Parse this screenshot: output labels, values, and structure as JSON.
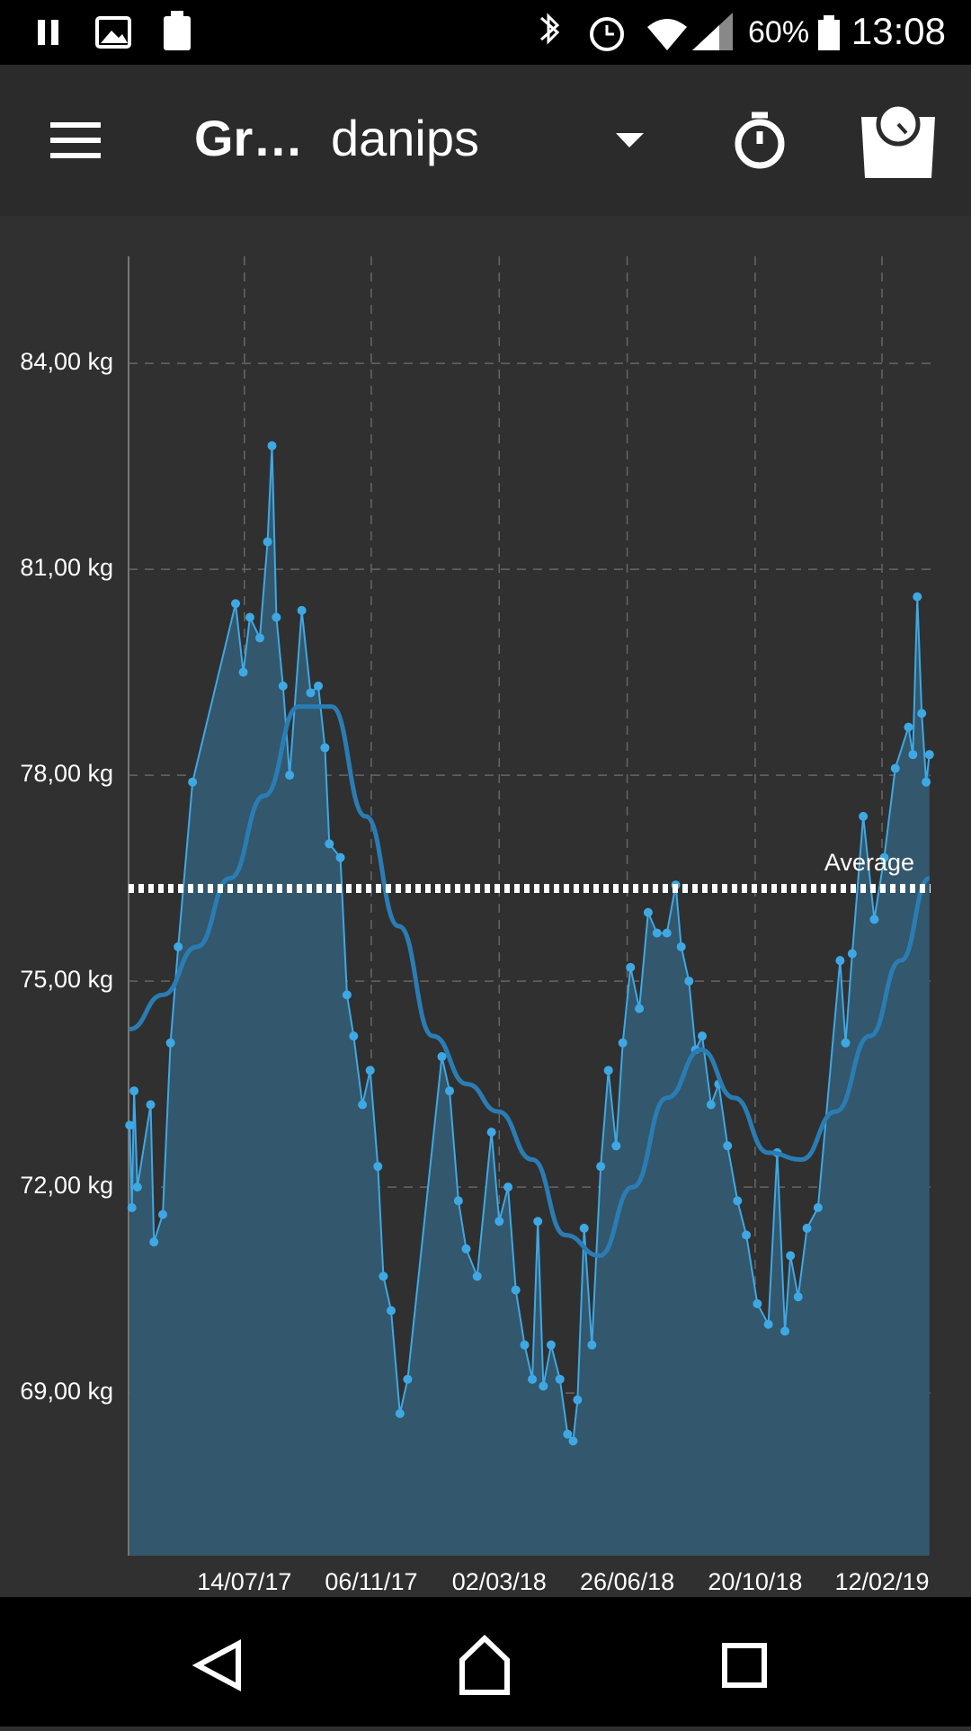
{
  "status_bar": {
    "battery": "60%",
    "time": "13:08"
  },
  "app_bar": {
    "title": "Gr…",
    "user": "danips"
  },
  "chart_data": {
    "type": "line",
    "x": [
      "2017-04-01",
      "2017-04-03",
      "2017-04-05",
      "2017-04-08",
      "2017-04-20",
      "2017-04-23",
      "2017-05-01",
      "2017-05-08",
      "2017-05-15",
      "2017-05-28",
      "2017-07-06",
      "2017-07-13",
      "2017-07-19",
      "2017-07-28",
      "2017-08-04",
      "2017-08-08",
      "2017-08-12",
      "2017-08-18",
      "2017-08-24",
      "2017-09-04",
      "2017-09-12",
      "2017-09-19",
      "2017-09-25",
      "2017-09-29",
      "2017-10-09",
      "2017-10-15",
      "2017-10-21",
      "2017-10-29",
      "2017-11-05",
      "2017-11-12",
      "2017-11-17",
      "2017-11-24",
      "2017-12-02",
      "2017-12-09",
      "2018-01-09",
      "2018-01-16",
      "2018-01-24",
      "2018-01-31",
      "2018-02-10",
      "2018-02-23",
      "2018-03-02",
      "2018-03-10",
      "2018-03-17",
      "2018-03-25",
      "2018-04-01",
      "2018-04-06",
      "2018-04-11",
      "2018-04-18",
      "2018-04-26",
      "2018-05-03",
      "2018-05-08",
      "2018-05-12",
      "2018-05-18",
      "2018-05-25",
      "2018-06-02",
      "2018-06-09",
      "2018-06-16",
      "2018-06-22",
      "2018-06-29",
      "2018-07-07",
      "2018-07-15",
      "2018-07-23",
      "2018-08-01",
      "2018-08-09",
      "2018-08-14",
      "2018-08-21",
      "2018-08-27",
      "2018-09-02",
      "2018-09-10",
      "2018-09-17",
      "2018-09-25",
      "2018-10-04",
      "2018-10-12",
      "2018-10-22",
      "2018-11-01",
      "2018-11-09",
      "2018-11-16",
      "2018-11-21",
      "2018-11-28",
      "2018-12-06",
      "2018-12-16",
      "2019-01-05",
      "2019-01-10",
      "2019-01-16",
      "2019-01-26",
      "2019-02-05",
      "2019-02-14",
      "2019-02-24",
      "2019-03-08",
      "2019-03-12",
      "2019-03-16",
      "2019-03-20",
      "2019-03-24",
      "2019-03-27"
    ],
    "series": [
      {
        "color": "#3ea8e5",
        "area_color": "#33576c",
        "values": [
          72.9,
          71.7,
          73.4,
          72.0,
          73.2,
          71.2,
          71.6,
          74.1,
          75.5,
          77.9,
          80.5,
          79.5,
          80.3,
          80.0,
          81.4,
          82.8,
          80.3,
          79.3,
          78.0,
          80.4,
          79.2,
          79.3,
          78.4,
          77.0,
          76.8,
          74.8,
          74.2,
          73.2,
          73.7,
          72.3,
          70.7,
          70.2,
          68.7,
          69.2,
          73.9,
          73.4,
          71.8,
          71.1,
          70.7,
          72.8,
          71.5,
          72.0,
          70.5,
          69.7,
          69.2,
          71.5,
          69.1,
          69.7,
          69.2,
          68.4,
          68.3,
          68.9,
          71.4,
          69.7,
          72.3,
          73.7,
          72.6,
          74.1,
          75.2,
          74.6,
          76.0,
          75.7,
          75.7,
          76.4,
          75.5,
          75.0,
          74.0,
          74.2,
          73.2,
          73.5,
          72.6,
          71.8,
          71.3,
          70.3,
          70.0,
          72.5,
          69.9,
          71.0,
          70.4,
          71.4,
          71.7,
          75.3,
          74.1,
          75.4,
          77.4,
          75.9,
          76.8,
          78.1,
          78.7,
          78.3,
          80.6,
          78.9,
          77.9,
          78.3
        ]
      },
      {
        "color": "#2a7db4",
        "x": [
          "2017-04-01",
          "2017-05-01",
          "2017-06-01",
          "2017-07-01",
          "2017-08-01",
          "2017-09-01",
          "2017-10-01",
          "2017-11-01",
          "2017-12-01",
          "2018-01-01",
          "2018-02-01",
          "2018-03-01",
          "2018-04-01",
          "2018-05-01",
          "2018-06-01",
          "2018-07-01",
          "2018-08-01",
          "2018-09-01",
          "2018-10-01",
          "2018-11-01",
          "2018-12-01",
          "2019-01-01",
          "2019-02-01",
          "2019-03-01",
          "2019-03-27"
        ],
        "values": [
          74.3,
          74.8,
          75.5,
          76.5,
          77.7,
          79.0,
          79.0,
          77.4,
          75.8,
          74.2,
          73.5,
          73.1,
          72.4,
          71.3,
          71.0,
          72.0,
          73.3,
          74.0,
          73.3,
          72.5,
          72.4,
          73.1,
          74.2,
          75.3,
          76.5
        ]
      }
    ],
    "average": {
      "value": 76.35,
      "label": "Average"
    },
    "xlim": [
      "2017-03-31",
      "2019-03-28"
    ],
    "xticks": [
      {
        "value": "2017-07-14",
        "label": "14/07/17"
      },
      {
        "value": "2017-11-06",
        "label": "06/11/17"
      },
      {
        "value": "2018-03-02",
        "label": "02/03/18"
      },
      {
        "value": "2018-06-26",
        "label": "26/06/18"
      },
      {
        "value": "2018-10-20",
        "label": "20/10/18"
      },
      {
        "value": "2019-02-12",
        "label": "12/02/19"
      }
    ],
    "ylim": [
      66.63,
      85.56
    ],
    "yticks": [
      {
        "value": 69,
        "label": "69,00 kg"
      },
      {
        "value": 72,
        "label": "72,00 kg"
      },
      {
        "value": 75,
        "label": "75,00 kg"
      },
      {
        "value": 78,
        "label": "78,00 kg"
      },
      {
        "value": 81,
        "label": "81,00 kg"
      },
      {
        "value": 84,
        "label": "84,00 kg"
      }
    ],
    "grid": true
  }
}
